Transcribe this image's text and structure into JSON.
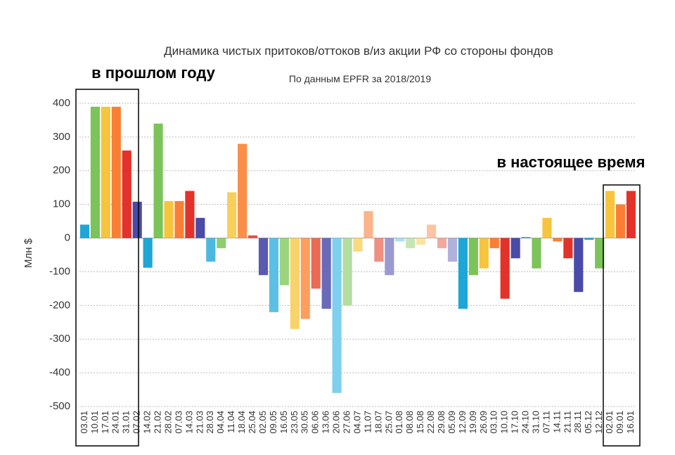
{
  "chart_data": {
    "type": "bar",
    "title": "Динамика чистых притоков/оттоков в/из акции РФ со стороны фондов",
    "subtitle": "По данным EPFR за 2018/2019",
    "y_label": "Млн $",
    "annotations": [
      "в прошлом году",
      "в настоящее время"
    ],
    "categories": [
      "03.01",
      "10.01",
      "17.01",
      "24.01",
      "31.01",
      "07.02",
      "14.02",
      "21.02",
      "28.02",
      "07.03",
      "14.03",
      "21.03",
      "28.03",
      "04.04",
      "11.04",
      "18.04",
      "25.04",
      "02.05",
      "09.05",
      "16.05",
      "23.05",
      "30.05",
      "06.06",
      "13.06",
      "20.06",
      "27.06",
      "04.07",
      "11.07",
      "18.07",
      "25.07",
      "01.08",
      "08.08",
      "15.08",
      "22.08",
      "29.08",
      "05.09",
      "12.09",
      "19.09",
      "26.09",
      "03.10",
      "10.10",
      "17.10",
      "24.10",
      "31.10",
      "07.11",
      "14.11",
      "21.11",
      "28.11",
      "05.12",
      "12.12",
      "02.01",
      "09.01",
      "16.01"
    ],
    "values": [
      40,
      390,
      390,
      390,
      260,
      108,
      -88,
      340,
      110,
      110,
      140,
      60,
      -70,
      -30,
      136,
      280,
      8,
      -110,
      -220,
      -140,
      -270,
      -240,
      -150,
      -210,
      -460,
      -200,
      -40,
      80,
      -70,
      -110,
      -10,
      -30,
      -20,
      40,
      -30,
      -70,
      -210,
      -110,
      -90,
      -30,
      -180,
      -60,
      3,
      -90,
      60,
      -10,
      -60,
      -160,
      -5,
      -90,
      140,
      100,
      140
    ],
    "colors": [
      "#1ea6d6",
      "#7cc35a",
      "#f6c43d",
      "#fa7f34",
      "#e3322a",
      "#4a4aa8",
      "#1ea6d6",
      "#7cc35a",
      "#f6c43d",
      "#fa7f34",
      "#e3322a",
      "#4a4aa8",
      "#4cb8e0",
      "#8fcd6e",
      "#f7cf5a",
      "#fb8f4a",
      "#e6503c",
      "#5a5ab0",
      "#5cc0e6",
      "#9ad47e",
      "#f8d26a",
      "#fb9e5e",
      "#ea6a56",
      "#6a6ab8",
      "#7fd0ee",
      "#b2dea0",
      "#f9da80",
      "#fcb48a",
      "#ef9082",
      "#9a9ad0",
      "#a8e0f4",
      "#c4e6b6",
      "#fbe3a0",
      "#fdc4a4",
      "#f2a89e",
      "#b0b0dc",
      "#1ea6d6",
      "#7cc35a",
      "#f6c43d",
      "#fa7f34",
      "#e3322a",
      "#4a4aa8",
      "#1ea6d6",
      "#7cc35a",
      "#f6c43d",
      "#fa7f34",
      "#e3322a",
      "#4a4aa8",
      "#1ea6d6",
      "#7cc35a",
      "#f6c43d",
      "#fa7f34",
      "#e3322a"
    ],
    "ylim": [
      -500,
      400
    ],
    "yticks": [
      400,
      300,
      200,
      100,
      0,
      -100,
      -200,
      -300,
      -400,
      -500
    ],
    "grid": true
  }
}
